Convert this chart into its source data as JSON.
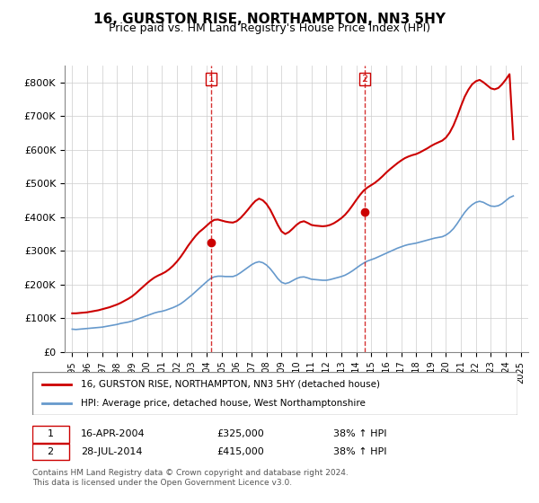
{
  "title": "16, GURSTON RISE, NORTHAMPTON, NN3 5HY",
  "subtitle": "Price paid vs. HM Land Registry's House Price Index (HPI)",
  "legend_line1": "16, GURSTON RISE, NORTHAMPTON, NN3 5HY (detached house)",
  "legend_line2": "HPI: Average price, detached house, West Northamptonshire",
  "sale1_label": "1",
  "sale1_date": "16-APR-2004",
  "sale1_price": "£325,000",
  "sale1_hpi": "38% ↑ HPI",
  "sale1_year": 2004.29,
  "sale2_label": "2",
  "sale2_date": "28-JUL-2014",
  "sale2_price": "£415,000",
  "sale2_hpi": "38% ↑ HPI",
  "sale2_year": 2014.56,
  "footnote1": "Contains HM Land Registry data © Crown copyright and database right 2024.",
  "footnote2": "This data is licensed under the Open Government Licence v3.0.",
  "red_color": "#cc0000",
  "blue_color": "#6699cc",
  "dashed_color": "#cc0000",
  "background_color": "#ffffff",
  "grid_color": "#cccccc",
  "xlim_left": 1994.5,
  "xlim_right": 2025.5,
  "ylim_bottom": 0,
  "ylim_top": 850000,
  "hpi_data": {
    "years": [
      1995.0,
      1995.25,
      1995.5,
      1995.75,
      1996.0,
      1996.25,
      1996.5,
      1996.75,
      1997.0,
      1997.25,
      1997.5,
      1997.75,
      1998.0,
      1998.25,
      1998.5,
      1998.75,
      1999.0,
      1999.25,
      1999.5,
      1999.75,
      2000.0,
      2000.25,
      2000.5,
      2000.75,
      2001.0,
      2001.25,
      2001.5,
      2001.75,
      2002.0,
      2002.25,
      2002.5,
      2002.75,
      2003.0,
      2003.25,
      2003.5,
      2003.75,
      2004.0,
      2004.25,
      2004.5,
      2004.75,
      2005.0,
      2005.25,
      2005.5,
      2005.75,
      2006.0,
      2006.25,
      2006.5,
      2006.75,
      2007.0,
      2007.25,
      2007.5,
      2007.75,
      2008.0,
      2008.25,
      2008.5,
      2008.75,
      2009.0,
      2009.25,
      2009.5,
      2009.75,
      2010.0,
      2010.25,
      2010.5,
      2010.75,
      2011.0,
      2011.25,
      2011.5,
      2011.75,
      2012.0,
      2012.25,
      2012.5,
      2012.75,
      2013.0,
      2013.25,
      2013.5,
      2013.75,
      2014.0,
      2014.25,
      2014.5,
      2014.75,
      2015.0,
      2015.25,
      2015.5,
      2015.75,
      2016.0,
      2016.25,
      2016.5,
      2016.75,
      2017.0,
      2017.25,
      2017.5,
      2017.75,
      2018.0,
      2018.25,
      2018.5,
      2018.75,
      2019.0,
      2019.25,
      2019.5,
      2019.75,
      2020.0,
      2020.25,
      2020.5,
      2020.75,
      2021.0,
      2021.25,
      2021.5,
      2021.75,
      2022.0,
      2022.25,
      2022.5,
      2022.75,
      2023.0,
      2023.25,
      2023.5,
      2023.75,
      2024.0,
      2024.25,
      2024.5
    ],
    "values": [
      68000,
      67000,
      68000,
      69000,
      70000,
      71000,
      72000,
      73000,
      74000,
      76000,
      78000,
      80000,
      82000,
      85000,
      87000,
      89000,
      92000,
      96000,
      100000,
      104000,
      108000,
      112000,
      116000,
      119000,
      121000,
      124000,
      128000,
      132000,
      137000,
      143000,
      151000,
      160000,
      169000,
      179000,
      189000,
      199000,
      209000,
      218000,
      223000,
      225000,
      225000,
      224000,
      224000,
      224000,
      228000,
      235000,
      243000,
      251000,
      259000,
      265000,
      268000,
      265000,
      258000,
      247000,
      233000,
      218000,
      207000,
      203000,
      206000,
      212000,
      218000,
      222000,
      223000,
      220000,
      216000,
      215000,
      214000,
      213000,
      213000,
      215000,
      218000,
      221000,
      224000,
      228000,
      234000,
      241000,
      249000,
      257000,
      264000,
      270000,
      274000,
      278000,
      283000,
      288000,
      293000,
      298000,
      303000,
      308000,
      312000,
      316000,
      319000,
      321000,
      323000,
      326000,
      329000,
      332000,
      335000,
      338000,
      340000,
      342000,
      347000,
      355000,
      366000,
      381000,
      398000,
      414000,
      427000,
      437000,
      444000,
      447000,
      444000,
      438000,
      433000,
      432000,
      434000,
      440000,
      449000,
      458000,
      463000
    ]
  },
  "property_data": {
    "years": [
      1995.0,
      1995.25,
      1995.5,
      1995.75,
      1996.0,
      1996.25,
      1996.5,
      1996.75,
      1997.0,
      1997.25,
      1997.5,
      1997.75,
      1998.0,
      1998.25,
      1998.5,
      1998.75,
      1999.0,
      1999.25,
      1999.5,
      1999.75,
      2000.0,
      2000.25,
      2000.5,
      2000.75,
      2001.0,
      2001.25,
      2001.5,
      2001.75,
      2002.0,
      2002.25,
      2002.5,
      2002.75,
      2003.0,
      2003.25,
      2003.5,
      2003.75,
      2004.0,
      2004.25,
      2004.5,
      2004.75,
      2005.0,
      2005.25,
      2005.5,
      2005.75,
      2006.0,
      2006.25,
      2006.5,
      2006.75,
      2007.0,
      2007.25,
      2007.5,
      2007.75,
      2008.0,
      2008.25,
      2008.5,
      2008.75,
      2009.0,
      2009.25,
      2009.5,
      2009.75,
      2010.0,
      2010.25,
      2010.5,
      2010.75,
      2011.0,
      2011.25,
      2011.5,
      2011.75,
      2012.0,
      2012.25,
      2012.5,
      2012.75,
      2013.0,
      2013.25,
      2013.5,
      2013.75,
      2014.0,
      2014.25,
      2014.5,
      2014.75,
      2015.0,
      2015.25,
      2015.5,
      2015.75,
      2016.0,
      2016.25,
      2016.5,
      2016.75,
      2017.0,
      2017.25,
      2017.5,
      2017.75,
      2018.0,
      2018.25,
      2018.5,
      2018.75,
      2019.0,
      2019.25,
      2019.5,
      2019.75,
      2020.0,
      2020.25,
      2020.5,
      2020.75,
      2021.0,
      2021.25,
      2021.5,
      2021.75,
      2022.0,
      2022.25,
      2022.5,
      2022.75,
      2023.0,
      2023.25,
      2023.5,
      2023.75,
      2024.0,
      2024.25,
      2024.5
    ],
    "values": [
      115000,
      115000,
      116000,
      117000,
      118000,
      120000,
      122000,
      124000,
      127000,
      130000,
      133000,
      137000,
      141000,
      146000,
      152000,
      158000,
      165000,
      174000,
      184000,
      194000,
      204000,
      213000,
      221000,
      227000,
      232000,
      238000,
      246000,
      256000,
      268000,
      282000,
      298000,
      315000,
      330000,
      344000,
      356000,
      365000,
      375000,
      385000,
      392000,
      393000,
      390000,
      387000,
      385000,
      384000,
      388000,
      397000,
      409000,
      422000,
      436000,
      448000,
      455000,
      450000,
      439000,
      422000,
      400000,
      377000,
      358000,
      350000,
      356000,
      366000,
      377000,
      385000,
      388000,
      383000,
      377000,
      375000,
      374000,
      373000,
      374000,
      377000,
      382000,
      389000,
      397000,
      407000,
      420000,
      435000,
      451000,
      466000,
      479000,
      488000,
      495000,
      502000,
      511000,
      521000,
      532000,
      542000,
      551000,
      560000,
      568000,
      575000,
      580000,
      584000,
      587000,
      592000,
      598000,
      604000,
      611000,
      617000,
      622000,
      627000,
      636000,
      651000,
      672000,
      699000,
      729000,
      757000,
      778000,
      794000,
      803000,
      807000,
      800000,
      791000,
      782000,
      779000,
      783000,
      794000,
      808000,
      824000,
      631000
    ]
  },
  "xtick_years": [
    1995,
    1996,
    1997,
    1998,
    1999,
    2000,
    2001,
    2002,
    2003,
    2004,
    2005,
    2006,
    2007,
    2008,
    2009,
    2010,
    2011,
    2012,
    2013,
    2014,
    2015,
    2016,
    2017,
    2018,
    2019,
    2020,
    2021,
    2022,
    2023,
    2024,
    2025
  ]
}
